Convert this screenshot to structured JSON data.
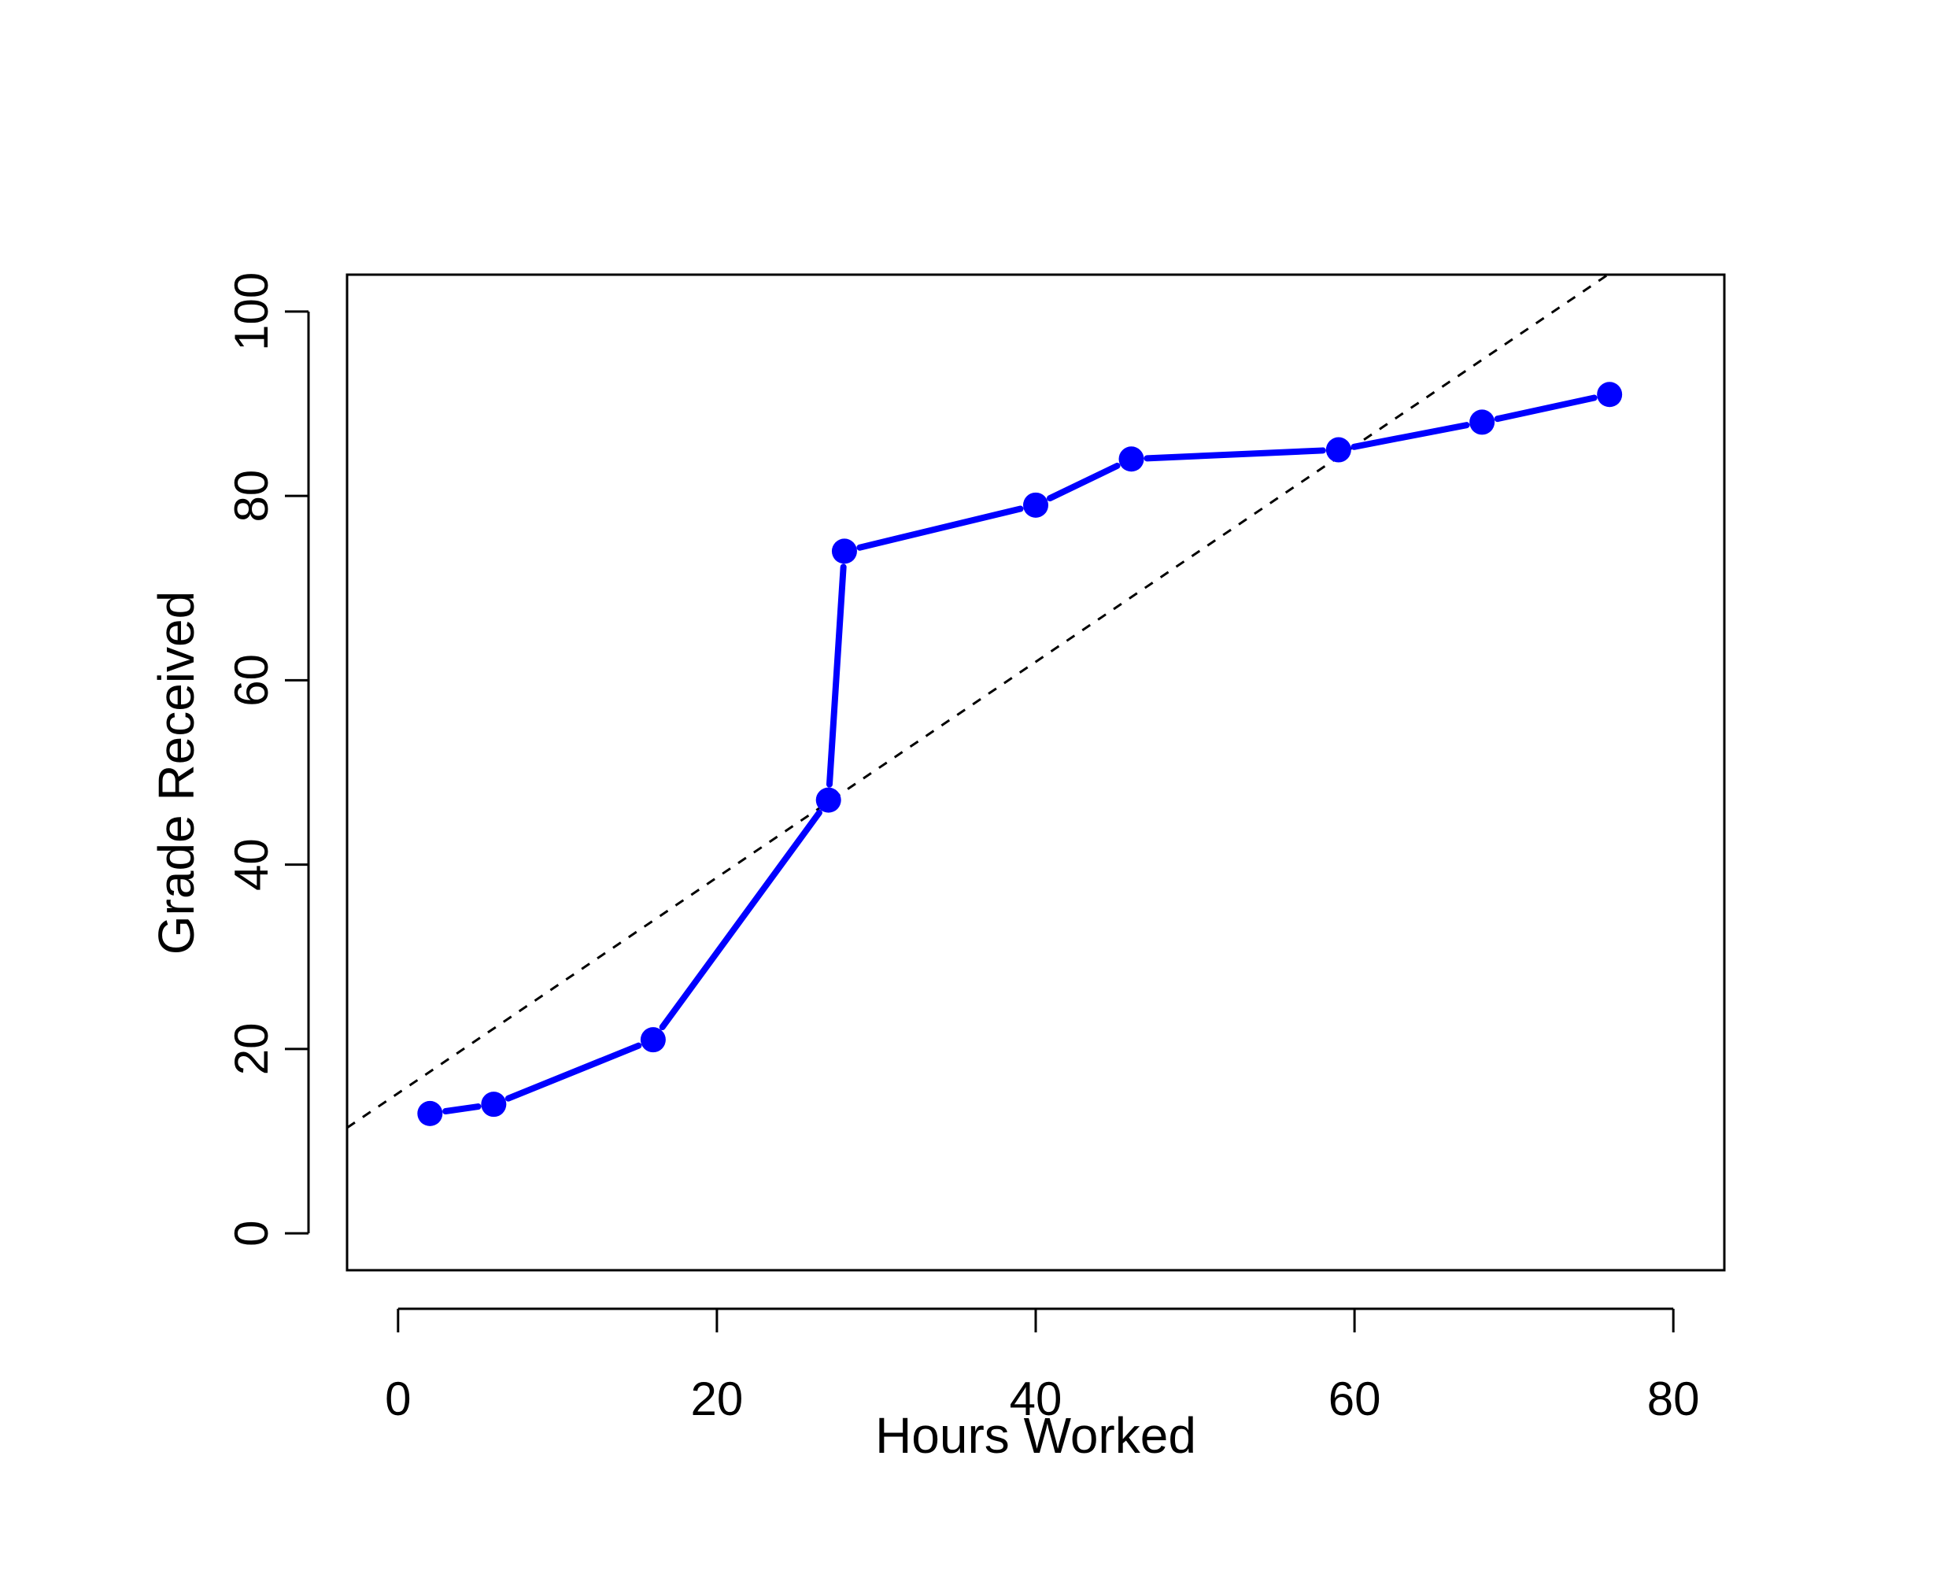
{
  "chart_data": {
    "type": "line",
    "title": "",
    "xlabel": "Hours Worked",
    "ylabel": "Grade Received",
    "xlim": [
      -3.2,
      83.2
    ],
    "ylim": [
      -4,
      104
    ],
    "xticks": [
      0,
      20,
      40,
      60,
      80
    ],
    "yticks": [
      0,
      20,
      40,
      60,
      80,
      100
    ],
    "grid": false,
    "legend": "none",
    "series": [
      {
        "x": [
          2,
          6,
          16,
          27,
          28,
          40,
          46,
          59,
          68,
          76
        ],
        "y": [
          13,
          14,
          21,
          47,
          74,
          79,
          84,
          85,
          88,
          91
        ],
        "color": "#0000ff",
        "style": "solid-with-gapped-points"
      }
    ],
    "reference_line": {
      "intercept": 15.2,
      "slope": 1.17,
      "color": "#000000",
      "style": "dashed"
    }
  }
}
